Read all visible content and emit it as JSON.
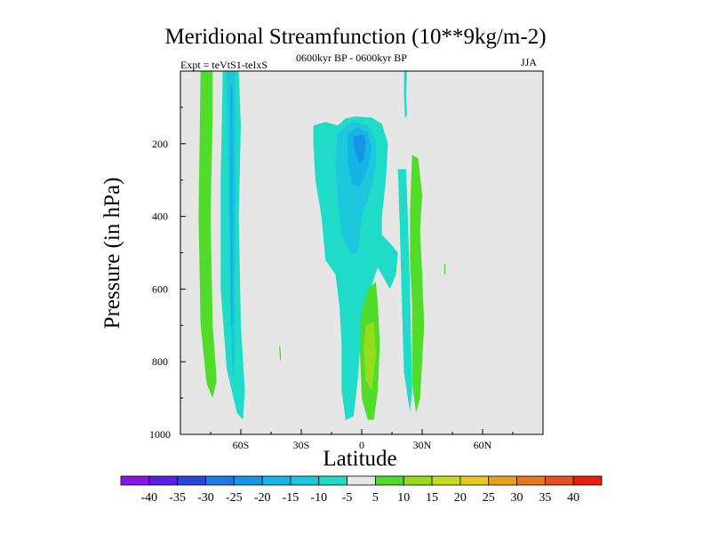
{
  "chart_data": {
    "type": "heatmap",
    "title": "Meridional Streamfunction (10**9kg/m-2)",
    "subtitle_left": "Expt = teVtS1-teIxS",
    "subtitle_center": "0600kyr BP - 0600kyr BP",
    "subtitle_right": "JJA",
    "xlabel": "Latitude",
    "ylabel": "Pressure (in hPa)",
    "xlim": [
      -90,
      90
    ],
    "ylim": [
      1000,
      0
    ],
    "x_ticks": [
      {
        "value": -60,
        "label": "60S"
      },
      {
        "value": -30,
        "label": "30S"
      },
      {
        "value": 0,
        "label": "0"
      },
      {
        "value": 30,
        "label": "30N"
      },
      {
        "value": 60,
        "label": "60N"
      }
    ],
    "y_ticks": [
      {
        "value": 200,
        "label": "200"
      },
      {
        "value": 400,
        "label": "400"
      },
      {
        "value": 600,
        "label": "600"
      },
      {
        "value": 800,
        "label": "800"
      },
      {
        "value": 1000,
        "label": "1000"
      }
    ],
    "background_color": "#e6e6e6",
    "colorbar": {
      "levels": [
        -40,
        -35,
        -30,
        -25,
        -20,
        -15,
        -10,
        -5,
        5,
        10,
        15,
        20,
        25,
        30,
        35,
        40
      ],
      "colors": [
        "#8a14e6",
        "#5a1ee6",
        "#2846dc",
        "#1e78e6",
        "#1496e6",
        "#14b4e6",
        "#1ec8dc",
        "#1edcc8",
        "#e6e6e6",
        "#50dc28",
        "#96dc1e",
        "#c8dc1e",
        "#e6c81e",
        "#e6a01e",
        "#e6781e",
        "#e6501e",
        "#e61e0a"
      ]
    },
    "contour_regions": [
      {
        "name": "westernmost-positive-band",
        "value": 7,
        "points": [
          [
            -80,
            0
          ],
          [
            -74,
            0
          ],
          [
            -74,
            120
          ],
          [
            -75,
            400
          ],
          [
            -74,
            700
          ],
          [
            -72,
            850
          ],
          [
            -74,
            900
          ],
          [
            -77,
            860
          ],
          [
            -80,
            700
          ],
          [
            -81,
            400
          ]
        ]
      },
      {
        "name": "southern-negative-band-outer",
        "value": -8,
        "points": [
          [
            -69,
            0
          ],
          [
            -61,
            0
          ],
          [
            -60,
            150
          ],
          [
            -61,
            400
          ],
          [
            -60,
            700
          ],
          [
            -58,
            880
          ],
          [
            -59,
            960
          ],
          [
            -62,
            940
          ],
          [
            -67,
            820
          ],
          [
            -70,
            600
          ],
          [
            -70,
            300
          ]
        ]
      },
      {
        "name": "southern-negative-band-inner",
        "value": -13,
        "points": [
          [
            -67,
            0
          ],
          [
            -63,
            0
          ],
          [
            -62.5,
            300
          ],
          [
            -63,
            600
          ],
          [
            -63,
            800
          ],
          [
            -64,
            850
          ],
          [
            -65,
            700
          ],
          [
            -66,
            400
          ]
        ]
      },
      {
        "name": "southern-negative-band-core",
        "value": -18,
        "points": [
          [
            -65.5,
            40
          ],
          [
            -64,
            40
          ],
          [
            -63.8,
            400
          ],
          [
            -64,
            700
          ],
          [
            -65,
            700
          ],
          [
            -65.4,
            400
          ]
        ]
      },
      {
        "name": "tropical-negative-cell-outer",
        "value": -8,
        "points": [
          [
            -24,
            150
          ],
          [
            -18,
            140
          ],
          [
            -12,
            150
          ],
          [
            -8,
            130
          ],
          [
            -3,
            125
          ],
          [
            5,
            128
          ],
          [
            10,
            145
          ],
          [
            13,
            200
          ],
          [
            12,
            300
          ],
          [
            10,
            400
          ],
          [
            10,
            450
          ],
          [
            15,
            480
          ],
          [
            18,
            500
          ],
          [
            17,
            560
          ],
          [
            14,
            600
          ],
          [
            12,
            580
          ],
          [
            8,
            540
          ],
          [
            3,
            620
          ],
          [
            0,
            700
          ],
          [
            -2,
            850
          ],
          [
            -4,
            950
          ],
          [
            -8,
            960
          ],
          [
            -10,
            880
          ],
          [
            -10,
            750
          ],
          [
            -11,
            650
          ],
          [
            -13,
            560
          ],
          [
            -18,
            520
          ],
          [
            -20,
            400
          ],
          [
            -23,
            300
          ],
          [
            -24,
            200
          ]
        ]
      },
      {
        "name": "tropical-negative-cell-ring",
        "value": -13,
        "points": [
          [
            -12,
            170
          ],
          [
            -5,
            140
          ],
          [
            3,
            150
          ],
          [
            7,
            190
          ],
          [
            7,
            260
          ],
          [
            4,
            340
          ],
          [
            0,
            400
          ],
          [
            -2,
            500
          ],
          [
            -6,
            500
          ],
          [
            -10,
            450
          ],
          [
            -12,
            350
          ],
          [
            -13,
            250
          ]
        ]
      },
      {
        "name": "tropical-negative-cell-mid",
        "value": -18,
        "points": [
          [
            -7,
            170
          ],
          [
            -2,
            155
          ],
          [
            3,
            170
          ],
          [
            5,
            210
          ],
          [
            3,
            270
          ],
          [
            -1,
            320
          ],
          [
            -5,
            310
          ],
          [
            -7,
            250
          ]
        ]
      },
      {
        "name": "tropical-negative-cell-core",
        "value": -25,
        "points": [
          [
            -4,
            180
          ],
          [
            1,
            175
          ],
          [
            2,
            200
          ],
          [
            1,
            240
          ],
          [
            -1,
            255
          ],
          [
            -3,
            230
          ],
          [
            -4,
            200
          ]
        ]
      },
      {
        "name": "equatorial-positive-lobe",
        "value": 8,
        "points": [
          [
            3,
            600
          ],
          [
            7,
            580
          ],
          [
            8,
            640
          ],
          [
            9,
            750
          ],
          [
            8,
            880
          ],
          [
            6,
            960
          ],
          [
            3,
            960
          ],
          [
            0,
            900
          ],
          [
            -1,
            750
          ],
          [
            0,
            660
          ]
        ]
      },
      {
        "name": "equatorial-positive-lobe-core",
        "value": 13,
        "points": [
          [
            2,
            700
          ],
          [
            6,
            690
          ],
          [
            7,
            780
          ],
          [
            5,
            880
          ],
          [
            2,
            850
          ],
          [
            1,
            770
          ]
        ]
      },
      {
        "name": "northern-positive-band",
        "value": 8,
        "points": [
          [
            25,
            230
          ],
          [
            28,
            240
          ],
          [
            30,
            340
          ],
          [
            29,
            440
          ],
          [
            30,
            560
          ],
          [
            31,
            700
          ],
          [
            29,
            900
          ],
          [
            27,
            940
          ],
          [
            25,
            860
          ],
          [
            25,
            650
          ],
          [
            24,
            520
          ],
          [
            24,
            380
          ]
        ]
      },
      {
        "name": "northern-cyan-sliver",
        "value": -8,
        "points": [
          [
            21,
            0
          ],
          [
            22.5,
            0
          ],
          [
            22,
            70
          ],
          [
            22.5,
            120
          ],
          [
            21.5,
            130
          ],
          [
            21,
            70
          ]
        ]
      },
      {
        "name": "northern-cyan-band",
        "value": -8,
        "points": [
          [
            18,
            270
          ],
          [
            22,
            270
          ],
          [
            23,
            420
          ],
          [
            24,
            600
          ],
          [
            25,
            880
          ],
          [
            24,
            940
          ],
          [
            21,
            830
          ],
          [
            20,
            650
          ],
          [
            19,
            450
          ]
        ]
      },
      {
        "name": "subtropical-small-patch",
        "value": 7,
        "points": [
          [
            -41,
            760
          ],
          [
            -40.5,
            755
          ],
          [
            -40,
            790
          ],
          [
            -40.6,
            800
          ]
        ]
      },
      {
        "name": "northern-small-patch",
        "value": 7,
        "points": [
          [
            41,
            530
          ],
          [
            41.6,
            530
          ],
          [
            41.5,
            560
          ],
          [
            41,
            560
          ]
        ]
      }
    ]
  }
}
